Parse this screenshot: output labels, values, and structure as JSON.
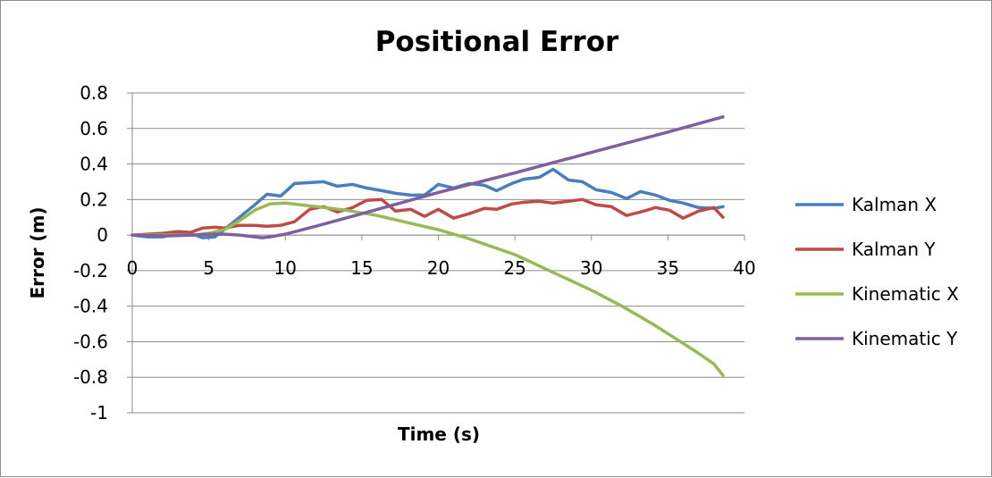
{
  "chart_data": {
    "type": "line",
    "title": "Positional Error",
    "xlabel": "Time (s)",
    "ylabel": "Error (m)",
    "xlim": [
      0,
      40
    ],
    "ylim": [
      -1,
      0.8
    ],
    "x_ticks": [
      "0",
      "5",
      "10",
      "15",
      "20",
      "25",
      "30",
      "35",
      "40"
    ],
    "y_ticks": [
      "0.8",
      "0.6",
      "0.4",
      "0.2",
      "0",
      "-0.2",
      "-0.4",
      "-0.6",
      "-0.8",
      "-1"
    ],
    "grid": "horizontal",
    "legend": "right",
    "series": [
      {
        "name": "Kalman X",
        "color": "#4a7ebb",
        "x": [
          0,
          1,
          2,
          3,
          3.8,
          4.6,
          5.4,
          6,
          7,
          8,
          8.8,
          9.7,
          10.6,
          11.6,
          12.5,
          13.4,
          14.4,
          15.3,
          16.3,
          17.2,
          18.2,
          19.1,
          20,
          21,
          22,
          23,
          23.8,
          24.8,
          25.6,
          26.6,
          27.5,
          28.5,
          29.4,
          30.3,
          31.3,
          32.3,
          33.2,
          34.2,
          35.1,
          36,
          37,
          38,
          38.6
        ],
        "y": [
          0,
          -0.01,
          -0.01,
          0.01,
          0.01,
          -0.015,
          -0.01,
          0.03,
          0.1,
          0.17,
          0.23,
          0.22,
          0.29,
          0.295,
          0.3,
          0.275,
          0.285,
          0.265,
          0.25,
          0.235,
          0.225,
          0.225,
          0.285,
          0.265,
          0.29,
          0.28,
          0.25,
          0.29,
          0.315,
          0.325,
          0.37,
          0.31,
          0.3,
          0.255,
          0.24,
          0.205,
          0.245,
          0.225,
          0.195,
          0.18,
          0.155,
          0.15,
          0.16
        ]
      },
      {
        "name": "Kalman Y",
        "color": "#be4b48",
        "x": [
          0,
          1,
          2,
          3,
          3.8,
          4.6,
          5.4,
          6,
          7,
          8,
          8.8,
          9.7,
          10.6,
          11.6,
          12.5,
          13.4,
          14.4,
          15.3,
          16.3,
          17.2,
          18.2,
          19.1,
          20,
          21,
          22,
          23,
          23.8,
          24.8,
          25.6,
          26.6,
          27.5,
          28.5,
          29.4,
          30.3,
          31.3,
          32.3,
          33.2,
          34.2,
          35.1,
          36,
          37,
          38,
          38.6
        ],
        "y": [
          0,
          0.005,
          0.01,
          0.02,
          0.015,
          0.04,
          0.045,
          0.04,
          0.055,
          0.055,
          0.05,
          0.055,
          0.075,
          0.145,
          0.16,
          0.13,
          0.155,
          0.195,
          0.2,
          0.135,
          0.145,
          0.105,
          0.145,
          0.095,
          0.12,
          0.15,
          0.145,
          0.175,
          0.185,
          0.19,
          0.18,
          0.19,
          0.2,
          0.17,
          0.16,
          0.11,
          0.13,
          0.155,
          0.14,
          0.095,
          0.135,
          0.155,
          0.1
        ]
      },
      {
        "name": "Kinematic X",
        "color": "#98b954",
        "x": [
          0,
          2,
          4,
          5,
          6,
          7,
          8,
          9,
          10,
          11,
          12,
          13,
          14,
          15,
          16,
          17,
          18,
          19,
          20,
          21,
          22,
          23,
          24,
          25,
          26,
          27,
          28,
          29,
          30,
          31,
          32,
          33,
          34,
          35,
          36,
          37,
          38,
          38.6
        ],
        "y": [
          0,
          0,
          0,
          0.01,
          0.03,
          0.08,
          0.14,
          0.175,
          0.18,
          0.17,
          0.16,
          0.15,
          0.14,
          0.125,
          0.11,
          0.09,
          0.07,
          0.05,
          0.03,
          0.005,
          -0.02,
          -0.05,
          -0.08,
          -0.11,
          -0.15,
          -0.19,
          -0.23,
          -0.27,
          -0.31,
          -0.355,
          -0.4,
          -0.45,
          -0.5,
          -0.555,
          -0.61,
          -0.665,
          -0.725,
          -0.79
        ]
      },
      {
        "name": "Kinematic Y",
        "color": "#7d60a0",
        "x": [
          0,
          2,
          4,
          5,
          6,
          7,
          8,
          8.5,
          9,
          10,
          12,
          15,
          20,
          25,
          30,
          35,
          38.6
        ],
        "y": [
          0,
          -0.005,
          0,
          0.005,
          0.005,
          0,
          -0.01,
          -0.015,
          -0.01,
          0.005,
          0.05,
          0.12,
          0.24,
          0.35,
          0.465,
          0.58,
          0.665
        ]
      }
    ]
  }
}
